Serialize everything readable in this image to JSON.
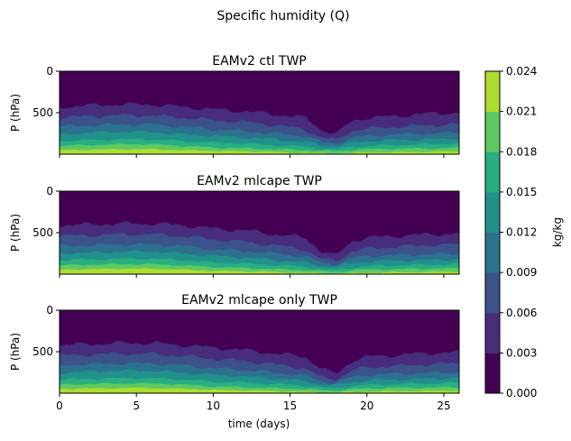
{
  "figure": {
    "suptitle": "Specific humidity (Q)"
  },
  "chart_data": {
    "type": "heatmap",
    "xlabel": "time (days)",
    "ylabel": "P (hPa)",
    "xlim": [
      0,
      26
    ],
    "x_ticks": [
      0,
      5,
      10,
      15,
      20,
      25
    ],
    "ylim": [
      1000,
      0
    ],
    "y_ticks": [
      0,
      500
    ],
    "grid": false,
    "colorbar": {
      "label": "kg/kg",
      "levels": [
        "0.000",
        "0.003",
        "0.006",
        "0.009",
        "0.012",
        "0.015",
        "0.018",
        "0.021",
        "0.024"
      ],
      "colors": [
        "#440154",
        "#472d7b",
        "#3b528b",
        "#2c728e",
        "#21918c",
        "#28ae80",
        "#5ec962",
        "#addc30",
        "#fde725"
      ]
    },
    "panels": [
      {
        "title": "EAMv2 ctl TWP",
        "boundaries_hPa_at_days": {
          "days": [
            0,
            2,
            4,
            6,
            8,
            10,
            12,
            14,
            16,
            17,
            18,
            19,
            20,
            22,
            24,
            26
          ],
          "q003": [
            430,
            410,
            400,
            400,
            430,
            460,
            480,
            520,
            560,
            700,
            760,
            600,
            560,
            540,
            510,
            500
          ],
          "q006": [
            560,
            540,
            530,
            530,
            560,
            590,
            610,
            650,
            700,
            800,
            830,
            720,
            690,
            670,
            650,
            640
          ],
          "q009": [
            670,
            650,
            640,
            640,
            670,
            700,
            720,
            750,
            780,
            850,
            870,
            800,
            780,
            760,
            750,
            740
          ],
          "q012": [
            760,
            740,
            730,
            730,
            760,
            780,
            800,
            820,
            850,
            890,
            900,
            860,
            840,
            830,
            820,
            810
          ],
          "q015": [
            840,
            830,
            820,
            820,
            840,
            860,
            870,
            890,
            910,
            930,
            940,
            910,
            900,
            890,
            880,
            870
          ],
          "q018": [
            900,
            890,
            880,
            880,
            900,
            920,
            930,
            940,
            950,
            960,
            965,
            950,
            940,
            935,
            930,
            925
          ],
          "q021": [
            950,
            945,
            940,
            940,
            950,
            960,
            965,
            975,
            985,
            990,
            992,
            985,
            980,
            975,
            970,
            965
          ]
        }
      },
      {
        "title": "EAMv2 mlcape TWP",
        "boundaries_hPa_at_days": {
          "days": [
            0,
            2,
            4,
            6,
            8,
            10,
            12,
            14,
            16,
            17,
            18,
            19,
            20,
            22,
            24,
            26
          ],
          "q003": [
            410,
            400,
            390,
            390,
            410,
            450,
            470,
            520,
            560,
            720,
            780,
            600,
            560,
            540,
            520,
            510
          ],
          "q006": [
            540,
            530,
            520,
            520,
            540,
            580,
            610,
            650,
            700,
            820,
            840,
            730,
            690,
            670,
            650,
            640
          ],
          "q009": [
            660,
            650,
            640,
            640,
            660,
            700,
            720,
            750,
            790,
            860,
            880,
            810,
            780,
            770,
            760,
            750
          ],
          "q012": [
            750,
            740,
            730,
            730,
            750,
            780,
            800,
            830,
            860,
            900,
            910,
            870,
            850,
            840,
            830,
            820
          ],
          "q015": [
            830,
            820,
            815,
            815,
            830,
            860,
            870,
            890,
            910,
            935,
            945,
            920,
            905,
            895,
            885,
            880
          ],
          "q018": [
            895,
            885,
            880,
            880,
            895,
            915,
            925,
            940,
            950,
            965,
            970,
            955,
            945,
            940,
            935,
            930
          ],
          "q021": [
            945,
            940,
            935,
            935,
            945,
            960,
            965,
            975,
            985,
            990,
            993,
            988,
            982,
            978,
            974,
            970
          ]
        }
      },
      {
        "title": "EAMv2 mlcape only TWP",
        "boundaries_hPa_at_days": {
          "days": [
            0,
            2,
            4,
            6,
            8,
            10,
            12,
            14,
            16,
            17,
            18,
            19,
            20,
            22,
            24,
            26
          ],
          "q003": [
            420,
            405,
            395,
            395,
            420,
            450,
            480,
            520,
            560,
            700,
            770,
            610,
            560,
            540,
            515,
            505
          ],
          "q006": [
            550,
            535,
            525,
            525,
            550,
            585,
            610,
            650,
            700,
            810,
            835,
            725,
            690,
            670,
            650,
            640
          ],
          "q009": [
            665,
            650,
            640,
            640,
            665,
            700,
            720,
            750,
            785,
            855,
            875,
            805,
            780,
            765,
            755,
            745
          ],
          "q012": [
            755,
            740,
            730,
            730,
            755,
            780,
            800,
            825,
            855,
            895,
            905,
            865,
            845,
            835,
            825,
            815
          ],
          "q015": [
            835,
            825,
            818,
            818,
            835,
            860,
            870,
            890,
            910,
            932,
            942,
            915,
            902,
            892,
            882,
            875
          ],
          "q018": [
            898,
            888,
            882,
            882,
            898,
            918,
            928,
            940,
            950,
            962,
            968,
            952,
            942,
            937,
            932,
            927
          ],
          "q021": [
            948,
            942,
            937,
            937,
            948,
            960,
            965,
            975,
            985,
            990,
            992,
            986,
            981,
            976,
            972,
            968
          ]
        }
      }
    ]
  }
}
